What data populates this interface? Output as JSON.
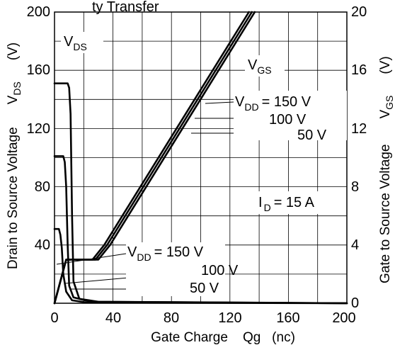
{
  "chart_data": {
    "type": "line",
    "title_partial": "ty Transfer",
    "xlabel": "Gate Charge    Qg   (nc)",
    "ylabel_left": "Drain to Source Voltage",
    "ylabel_left_symbol": "V",
    "ylabel_left_sub": "DS",
    "ylabel_left_unit": "(V)",
    "ylabel_right": "Gate to Source Voltage",
    "ylabel_right_symbol": "V",
    "ylabel_right_sub": "GS",
    "ylabel_right_unit": "(V)",
    "xlim": [
      0,
      200
    ],
    "ylim_left": [
      0,
      200
    ],
    "ylim_right": [
      0,
      20
    ],
    "x_ticks": [
      "0",
      "40",
      "80",
      "120",
      "160",
      "200"
    ],
    "y_left_ticks": [
      "40",
      "80",
      "120",
      "160",
      "200"
    ],
    "y_right_ticks": [
      "0",
      "4",
      "8",
      "12",
      "16",
      "20"
    ],
    "grid": true,
    "labels": {
      "vds_symbol": "V",
      "vds_sub": "DS",
      "vgs_symbol": "V",
      "vgs_sub": "GS",
      "vdd_a_symbol": "V",
      "vdd_a_sub": "DD",
      "vdd_a_value": "= 150 V",
      "vdd_a_100": "100 V",
      "vdd_a_50": "50 V",
      "vdd_b_symbol": "V",
      "vdd_b_sub": "DD",
      "vdd_b_value": "= 150 V",
      "vdd_b_100": "100 V",
      "vdd_b_50": "50 V",
      "id_symbol": "I",
      "id_sub": "D",
      "id_value": "= 15 A"
    },
    "series": [
      {
        "axis": "right",
        "line": "VGS",
        "vdd": "150",
        "points": [
          [
            0,
            0
          ],
          [
            8,
            3
          ],
          [
            30,
            3
          ],
          [
            38,
            4
          ],
          [
            137,
            20
          ]
        ]
      },
      {
        "axis": "right",
        "line": "VGS",
        "vdd": "100",
        "points": [
          [
            0,
            0
          ],
          [
            8,
            3
          ],
          [
            28,
            3
          ],
          [
            36,
            4
          ],
          [
            135,
            20
          ]
        ]
      },
      {
        "axis": "right",
        "line": "VGS",
        "vdd": "50",
        "points": [
          [
            0,
            0
          ],
          [
            8,
            3
          ],
          [
            26,
            3
          ],
          [
            34,
            4
          ],
          [
            133,
            20
          ]
        ]
      },
      {
        "axis": "left",
        "line": "VDS",
        "vdd": "150",
        "points": [
          [
            0,
            151
          ],
          [
            9,
            151
          ],
          [
            10,
            148
          ],
          [
            11,
            130
          ],
          [
            12,
            60
          ],
          [
            13,
            15
          ],
          [
            17,
            3
          ],
          [
            30,
            1
          ],
          [
            200,
            0
          ]
        ]
      },
      {
        "axis": "left",
        "line": "VDS",
        "vdd": "100",
        "points": [
          [
            0,
            101
          ],
          [
            6,
            101
          ],
          [
            7,
            97
          ],
          [
            8,
            80
          ],
          [
            9,
            40
          ],
          [
            10,
            12
          ],
          [
            13,
            4
          ],
          [
            25,
            1
          ],
          [
            200,
            0
          ]
        ]
      },
      {
        "axis": "left",
        "line": "VDS",
        "vdd": "50",
        "points": [
          [
            0,
            51
          ],
          [
            3,
            51
          ],
          [
            4,
            47
          ],
          [
            5,
            38
          ],
          [
            6,
            20
          ],
          [
            8,
            8
          ],
          [
            12,
            2
          ],
          [
            22,
            0.5
          ],
          [
            200,
            0
          ]
        ]
      }
    ]
  }
}
